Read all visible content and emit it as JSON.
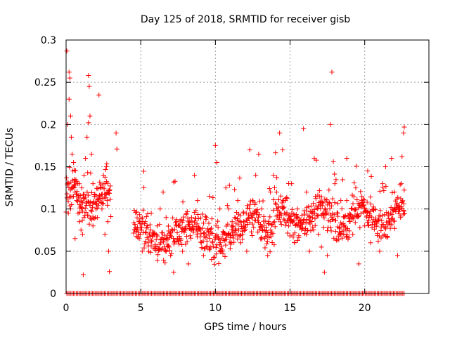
{
  "chart_data": {
    "type": "scatter",
    "title": "Day 125 of 2018, SRMTID for receiver gisb",
    "xlabel": "GPS time / hours",
    "ylabel": "SRMTID / TECUs",
    "xlim": [
      0,
      24.3
    ],
    "ylim": [
      0,
      0.3
    ],
    "x_ticks": [
      0,
      5,
      10,
      15,
      20
    ],
    "x_tick_labels": [
      "0",
      "5",
      "10",
      "15",
      "20"
    ],
    "y_ticks": [
      0,
      0.05,
      0.1,
      0.15,
      0.2,
      0.25,
      0.3
    ],
    "y_tick_labels": [
      "0",
      "0.05",
      "0.1",
      "0.15",
      "0.2",
      "0.25",
      "0.3"
    ],
    "grid": true,
    "marker": "+",
    "series_color": "#ff0000",
    "gap_hours": [
      3.0,
      4.5
    ],
    "last_hour": 22.7,
    "baseline_zero_markers": true,
    "series": [
      {
        "name": "SRMTID",
        "points": [
          [
            0.05,
            0.287
          ],
          [
            0.2,
            0.262
          ],
          [
            0.25,
            0.255
          ],
          [
            0.2,
            0.23
          ],
          [
            0.3,
            0.21
          ],
          [
            0.1,
            0.2
          ],
          [
            0.35,
            0.185
          ],
          [
            0.4,
            0.165
          ],
          [
            0.5,
            0.155
          ],
          [
            0.55,
            0.135
          ],
          [
            0.6,
            0.12
          ],
          [
            0.7,
            0.11
          ],
          [
            0.8,
            0.095
          ],
          [
            0.9,
            0.085
          ],
          [
            1.0,
            0.075
          ],
          [
            1.1,
            0.07
          ],
          [
            1.15,
            0.022
          ],
          [
            1.2,
            0.14
          ],
          [
            1.3,
            0.16
          ],
          [
            1.4,
            0.185
          ],
          [
            1.5,
            0.202
          ],
          [
            1.55,
            0.245
          ],
          [
            1.5,
            0.258
          ],
          [
            1.6,
            0.21
          ],
          [
            1.7,
            0.165
          ],
          [
            1.8,
            0.13
          ],
          [
            1.9,
            0.115
          ],
          [
            2.0,
            0.1
          ],
          [
            2.1,
            0.09
          ],
          [
            2.2,
            0.235
          ],
          [
            2.3,
            0.125
          ],
          [
            2.5,
            0.14
          ],
          [
            2.6,
            0.13
          ],
          [
            2.7,
            0.15
          ],
          [
            2.75,
            0.11
          ],
          [
            2.8,
            0.085
          ],
          [
            2.85,
            0.05
          ],
          [
            2.9,
            0.026
          ],
          [
            3.35,
            0.19
          ],
          [
            3.4,
            0.171
          ],
          [
            0.3,
            0.1
          ],
          [
            0.6,
            0.065
          ],
          [
            0.9,
            0.105
          ],
          [
            1.2,
            0.09
          ],
          [
            1.8,
            0.08
          ],
          [
            2.4,
            0.1
          ],
          [
            2.6,
            0.07
          ],
          [
            0.15,
            0.095
          ],
          [
            0.45,
            0.145
          ],
          [
            1.05,
            0.125
          ],
          [
            4.7,
            0.075
          ],
          [
            4.9,
            0.065
          ],
          [
            5.1,
            0.05
          ],
          [
            5.3,
            0.085
          ],
          [
            5.5,
            0.06
          ],
          [
            5.7,
            0.095
          ],
          [
            5.9,
            0.07
          ],
          [
            6.1,
            0.08
          ],
          [
            6.3,
            0.1
          ],
          [
            6.5,
            0.12
          ],
          [
            6.7,
            0.09
          ],
          [
            6.9,
            0.055
          ],
          [
            7.0,
            0.045
          ],
          [
            7.2,
            0.025
          ],
          [
            7.4,
            0.08
          ],
          [
            7.6,
            0.065
          ],
          [
            7.8,
            0.05
          ],
          [
            8.0,
            0.075
          ],
          [
            8.2,
            0.035
          ],
          [
            8.4,
            0.09
          ],
          [
            8.6,
            0.14
          ],
          [
            8.8,
            0.11
          ],
          [
            9.0,
            0.075
          ],
          [
            9.2,
            0.045
          ],
          [
            9.4,
            0.09
          ],
          [
            9.6,
            0.115
          ],
          [
            9.8,
            0.06
          ],
          [
            10.0,
            0.175
          ],
          [
            10.1,
            0.155
          ],
          [
            10.3,
            0.1
          ],
          [
            10.5,
            0.07
          ],
          [
            10.7,
            0.125
          ],
          [
            10.9,
            0.1
          ],
          [
            11.1,
            0.08
          ],
          [
            11.3,
            0.09
          ],
          [
            11.5,
            0.11
          ],
          [
            11.7,
            0.06
          ],
          [
            11.9,
            0.095
          ],
          [
            12.1,
            0.05
          ],
          [
            12.3,
            0.17
          ],
          [
            12.5,
            0.09
          ],
          [
            12.7,
            0.14
          ],
          [
            12.9,
            0.165
          ],
          [
            13.1,
            0.1
          ],
          [
            13.3,
            0.065
          ],
          [
            13.5,
            0.045
          ],
          [
            13.7,
            0.075
          ],
          [
            13.9,
            0.14
          ],
          [
            14.1,
            0.12
          ],
          [
            14.3,
            0.19
          ],
          [
            14.5,
            0.17
          ],
          [
            14.7,
            0.11
          ],
          [
            14.9,
            0.08
          ],
          [
            15.1,
            0.13
          ],
          [
            15.3,
            0.06
          ],
          [
            15.5,
            0.1
          ],
          [
            15.7,
            0.08
          ],
          [
            15.9,
            0.195
          ],
          [
            16.1,
            0.12
          ],
          [
            16.3,
            0.05
          ],
          [
            16.5,
            0.09
          ],
          [
            16.7,
            0.115
          ],
          [
            16.9,
            0.07
          ],
          [
            17.1,
            0.055
          ],
          [
            17.3,
            0.025
          ],
          [
            17.5,
            0.045
          ],
          [
            17.7,
            0.2
          ],
          [
            17.8,
            0.262
          ],
          [
            18.0,
            0.13
          ],
          [
            18.2,
            0.095
          ],
          [
            18.4,
            0.11
          ],
          [
            18.6,
            0.075
          ],
          [
            18.8,
            0.16
          ],
          [
            19.0,
            0.09
          ],
          [
            19.2,
            0.07
          ],
          [
            19.4,
            0.125
          ],
          [
            19.6,
            0.035
          ],
          [
            19.8,
            0.11
          ],
          [
            20.0,
            0.08
          ],
          [
            20.2,
            0.145
          ],
          [
            20.4,
            0.06
          ],
          [
            20.6,
            0.1
          ],
          [
            20.8,
            0.085
          ],
          [
            21.0,
            0.05
          ],
          [
            21.2,
            0.13
          ],
          [
            21.4,
            0.15
          ],
          [
            21.6,
            0.095
          ],
          [
            21.8,
            0.16
          ],
          [
            22.0,
            0.12
          ],
          [
            22.2,
            0.045
          ],
          [
            22.4,
            0.09
          ],
          [
            22.6,
            0.19
          ],
          [
            22.65,
            0.197
          ],
          [
            22.5,
            0.162
          ],
          [
            22.3,
            0.1
          ]
        ]
      }
    ]
  }
}
